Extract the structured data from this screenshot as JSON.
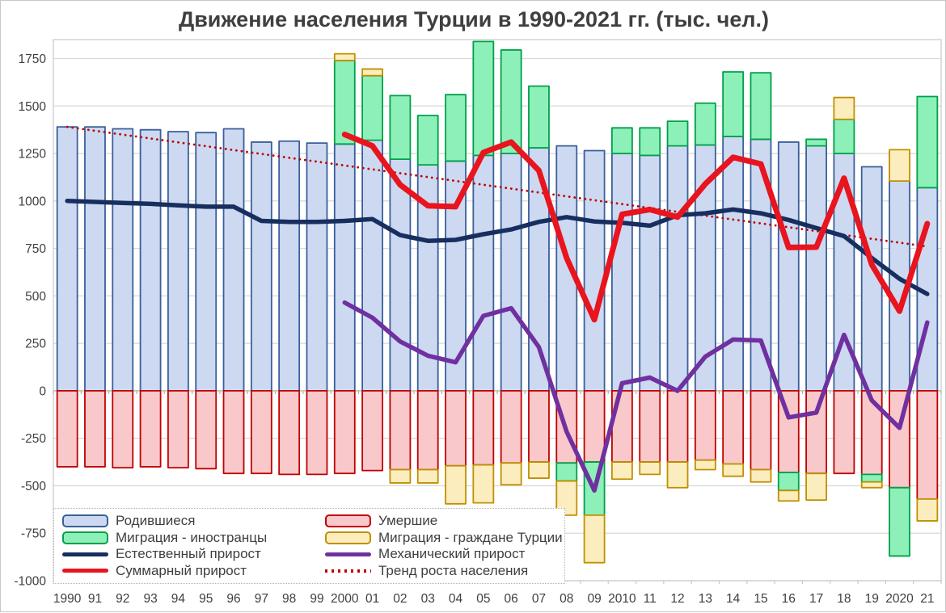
{
  "title": "Движение населения Турции в 1990-2021 гг. (тыс. чел.)",
  "colors": {
    "births_fill": "#ccd9f1",
    "births_border": "#3a5f9a",
    "deaths_fill": "#f8c8ca",
    "deaths_border": "#c00000",
    "foreign_fill": "#8df0b8",
    "foreign_border": "#00a04a",
    "citizens_fill": "#fcedbe",
    "citizens_border": "#bf9000",
    "natural_line": "#172e5f",
    "mechanical_line": "#7030a0",
    "total_line": "#e8141e",
    "trend_line": "#c00000",
    "grid": "#d9d9d9",
    "zero_axis": "#aeaeae",
    "plot_border": "#c9c9c9",
    "text": "#3f3f3f"
  },
  "y_axis": {
    "ticks": [
      1750,
      1500,
      1250,
      1000,
      750,
      500,
      250,
      0,
      -250,
      -500,
      -750,
      -1000
    ]
  },
  "chart_data": {
    "type": "bar",
    "subtype": "stacked bars with overlaid lines",
    "title": "Движение населения Турции в 1990-2021 гг. (тыс. чел.)",
    "xlabel": "",
    "ylabel": "",
    "ylim": [
      -1000,
      1850
    ],
    "grid": "horizontal",
    "legend_position": "bottom-left",
    "categories": [
      "1990",
      "91",
      "92",
      "93",
      "94",
      "95",
      "96",
      "97",
      "98",
      "99",
      "2000",
      "01",
      "02",
      "03",
      "04",
      "05",
      "06",
      "07",
      "08",
      "09",
      "2010",
      "11",
      "12",
      "13",
      "14",
      "15",
      "16",
      "17",
      "18",
      "19",
      "2020",
      "21"
    ],
    "series": [
      {
        "name": "Родившиеся",
        "type": "bar",
        "values": [
          1390,
          1390,
          1380,
          1375,
          1365,
          1360,
          1380,
          1310,
          1315,
          1305,
          1300,
          1320,
          1220,
          1190,
          1210,
          1240,
          1250,
          1280,
          1290,
          1265,
          1250,
          1240,
          1290,
          1295,
          1340,
          1325,
          1310,
          1290,
          1250,
          1180,
          1105,
          1070
        ]
      },
      {
        "name": "Умершие",
        "type": "bar",
        "values": [
          -400,
          -400,
          -405,
          -400,
          -405,
          -410,
          -435,
          -435,
          -440,
          -440,
          -435,
          -420,
          -415,
          -415,
          -395,
          -390,
          -380,
          -375,
          -380,
          -375,
          -375,
          -375,
          -375,
          -365,
          -385,
          -415,
          -430,
          -435,
          -435,
          -440,
          -510,
          -570
        ]
      },
      {
        "name": "Миграция - иностранцы",
        "type": "bar",
        "values": [
          0,
          0,
          0,
          0,
          0,
          0,
          0,
          0,
          0,
          0,
          440,
          340,
          335,
          260,
          350,
          600,
          545,
          325,
          -95,
          -280,
          135,
          145,
          130,
          220,
          340,
          350,
          -95,
          35,
          180,
          -40,
          -360,
          480
        ]
      },
      {
        "name": "Миграция - граждане Турции",
        "type": "bar",
        "values": [
          0,
          0,
          0,
          0,
          0,
          0,
          0,
          0,
          0,
          0,
          35,
          35,
          -70,
          -70,
          -200,
          -200,
          -115,
          -85,
          -180,
          -250,
          -90,
          -65,
          -135,
          -50,
          -65,
          -65,
          -55,
          -140,
          115,
          -30,
          165,
          -115
        ]
      },
      {
        "name": "Естественный прирост",
        "type": "line",
        "values": [
          1000,
          995,
          990,
          985,
          977,
          970,
          970,
          895,
          890,
          890,
          895,
          905,
          820,
          790,
          795,
          825,
          850,
          890,
          915,
          892,
          885,
          870,
          925,
          935,
          955,
          935,
          900,
          857,
          815,
          700,
          590,
          510
        ]
      },
      {
        "name": "Механический прирост",
        "type": "line",
        "values": [
          null,
          null,
          null,
          null,
          null,
          null,
          null,
          null,
          null,
          null,
          465,
          385,
          260,
          185,
          150,
          395,
          435,
          230,
          -215,
          -525,
          40,
          70,
          0,
          180,
          270,
          265,
          -140,
          -115,
          295,
          -50,
          -195,
          360
        ]
      },
      {
        "name": "Суммарный прирост",
        "type": "line",
        "values": [
          null,
          null,
          null,
          null,
          null,
          null,
          null,
          null,
          null,
          null,
          1350,
          1290,
          1085,
          975,
          970,
          1255,
          1310,
          1160,
          700,
          375,
          930,
          955,
          915,
          1090,
          1230,
          1195,
          755,
          757,
          1120,
          665,
          420,
          880
        ]
      },
      {
        "name": "Тренд роста населения",
        "type": "trend",
        "start": 1390,
        "end": 760
      }
    ]
  },
  "legend": {
    "items": [
      {
        "label": "Родившиеся",
        "swatch": "bar",
        "fill": "#ccd9f1",
        "stroke": "#3a5f9a"
      },
      {
        "label": "Умершие",
        "swatch": "bar",
        "fill": "#f8c8ca",
        "stroke": "#c00000"
      },
      {
        "label": "Миграция - иностранцы",
        "swatch": "bar",
        "fill": "#8df0b8",
        "stroke": "#00a04a"
      },
      {
        "label": "Миграция - граждане Турции",
        "swatch": "bar",
        "fill": "#fcedbe",
        "stroke": "#bf9000"
      },
      {
        "label": "Естественный прирост",
        "swatch": "line",
        "fill": "#172e5f",
        "stroke": "#172e5f"
      },
      {
        "label": "Механический прирост",
        "swatch": "line",
        "fill": "#7030a0",
        "stroke": "#7030a0"
      },
      {
        "label": "Суммарный прирост",
        "swatch": "line",
        "fill": "#e8141e",
        "stroke": "#e8141e"
      },
      {
        "label": "Тренд роста населения",
        "swatch": "dots",
        "fill": "#c00000",
        "stroke": "#c00000"
      }
    ]
  }
}
